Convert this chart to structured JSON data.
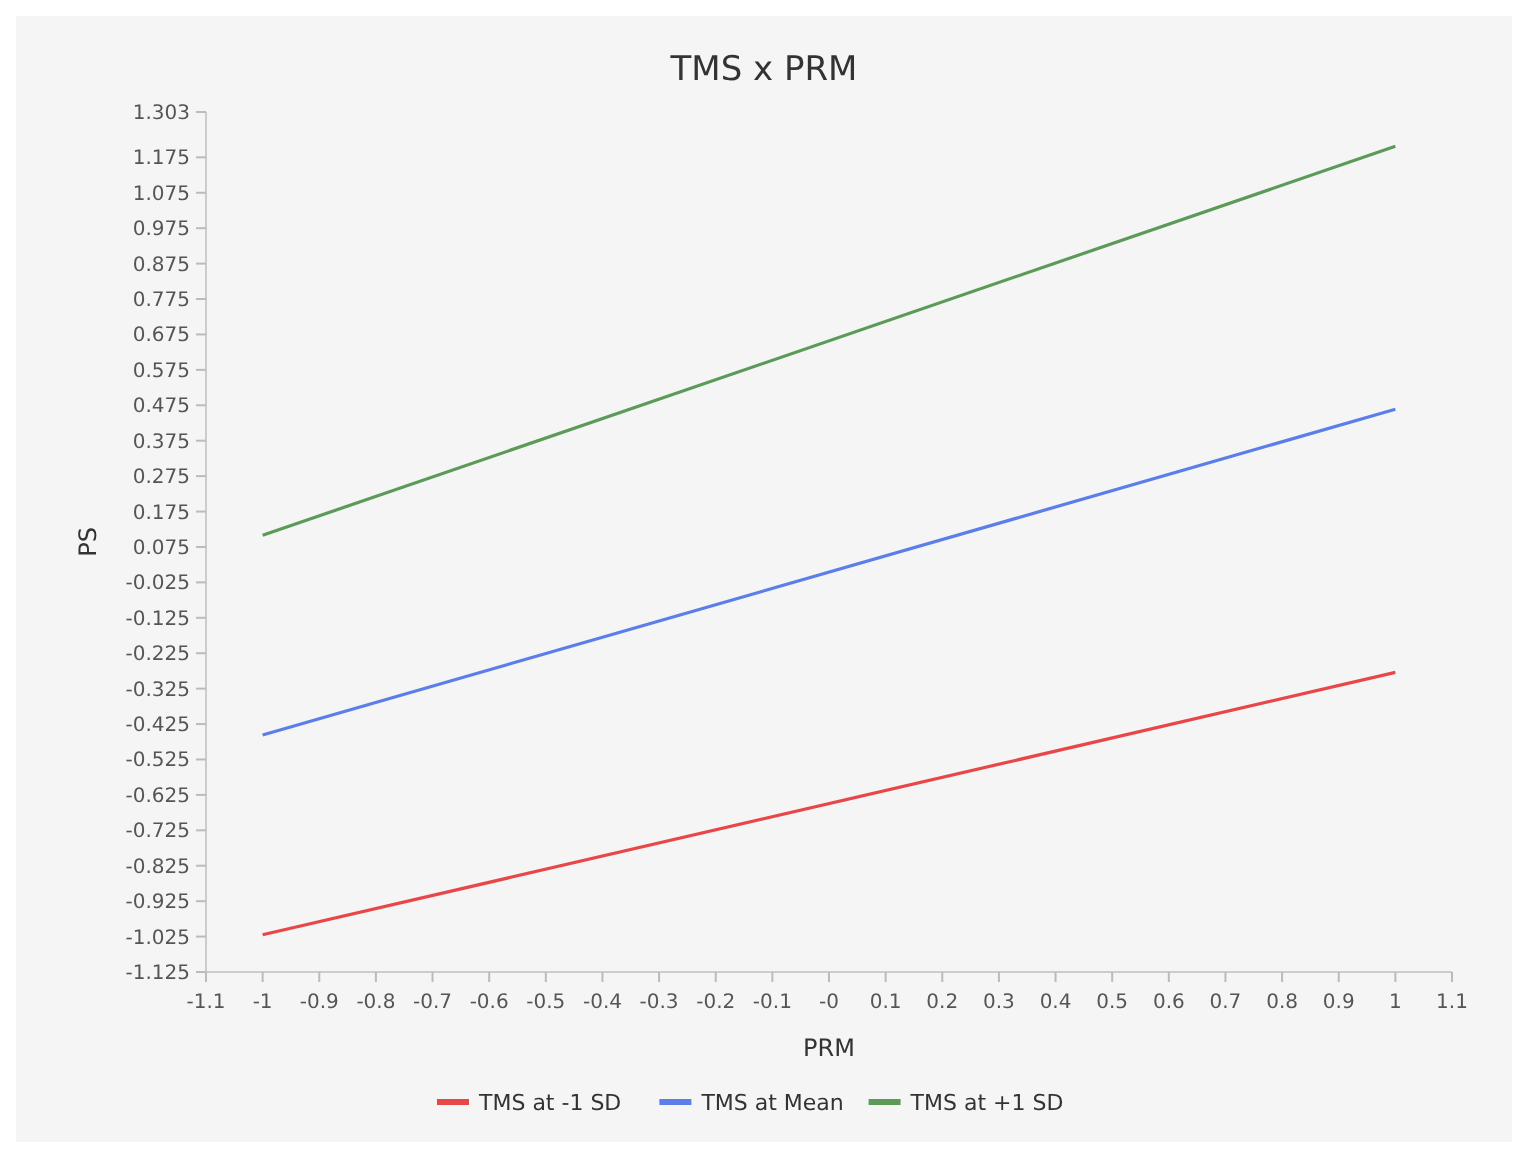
{
  "chart_data": {
    "type": "line",
    "title": "TMS x PRM",
    "xlabel": "PRM",
    "ylabel": "PS",
    "x": [
      -1,
      1
    ],
    "series": [
      {
        "name": "TMS at -1 SD",
        "color": "#e8474a",
        "values": [
          -1.02,
          -0.279
        ]
      },
      {
        "name": "TMS at Mean",
        "color": "#5b7ee8",
        "values": [
          -0.456,
          0.464
        ]
      },
      {
        "name": "TMS at +1 SD",
        "color": "#5c9a58",
        "values": [
          0.108,
          1.206
        ]
      }
    ],
    "xlim": [
      -1.1,
      1.1
    ],
    "xticks": [
      -1.1,
      -1,
      -0.9,
      -0.8,
      -0.7,
      -0.6,
      -0.5,
      -0.4,
      -0.3,
      -0.2,
      -0.1,
      {
        "value": 0,
        "label": "-0"
      },
      0.1,
      0.2,
      0.3,
      0.4,
      0.5,
      0.6,
      0.7,
      0.8,
      0.9,
      1,
      1.1
    ],
    "ylim": [
      -1.125,
      1.303
    ],
    "yticks": [
      -1.125,
      -1.025,
      -0.925,
      -0.825,
      -0.725,
      -0.625,
      -0.525,
      -0.425,
      -0.325,
      -0.225,
      -0.125,
      -0.025,
      0.075,
      0.175,
      0.275,
      0.375,
      0.475,
      0.575,
      0.675,
      0.775,
      0.875,
      0.975,
      1.075,
      1.175,
      1.303
    ],
    "grid": false,
    "legend": "bottom",
    "marker": "none",
    "line_style": "solid"
  }
}
